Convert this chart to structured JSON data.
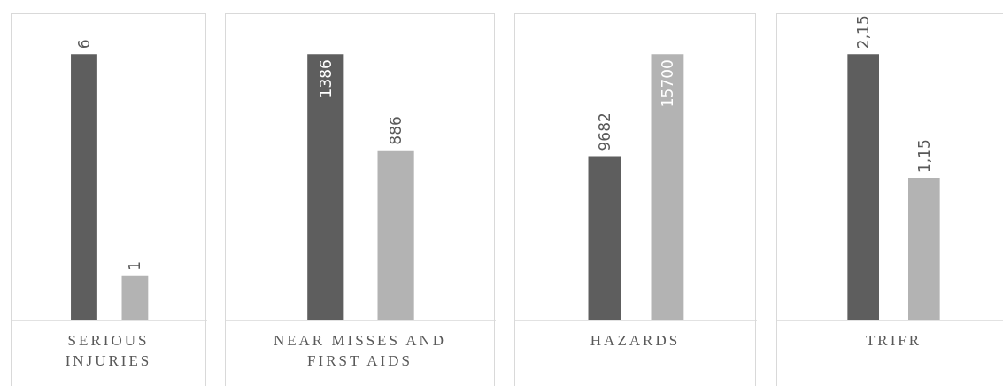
{
  "chart_data": [
    {
      "type": "bar",
      "xlabel": "SERIOUS INJURIES",
      "categories": [
        null,
        null
      ],
      "values": [
        6,
        1
      ],
      "colors": [
        "#5e5e5e",
        "#b3b3b3"
      ],
      "data_labels": true
    },
    {
      "type": "bar",
      "xlabel": "NEAR MISSES AND FIRST AIDS",
      "categories": [
        null,
        null
      ],
      "values": [
        1386,
        886
      ],
      "colors": [
        "#5e5e5e",
        "#b3b3b3"
      ],
      "data_labels": true
    },
    {
      "type": "bar",
      "xlabel": "HAZARDS",
      "categories": [
        null,
        null
      ],
      "values": [
        9682,
        15700
      ],
      "colors": [
        "#5e5e5e",
        "#b3b3b3"
      ],
      "data_labels": true
    },
    {
      "type": "bar",
      "xlabel": "TRIFR",
      "categories": [
        null,
        null
      ],
      "values": [
        2.15,
        1.15
      ],
      "colors": [
        "#5e5e5e",
        "#b3b3b3"
      ],
      "value_labels": [
        "2,15",
        "1,15"
      ]
    }
  ]
}
